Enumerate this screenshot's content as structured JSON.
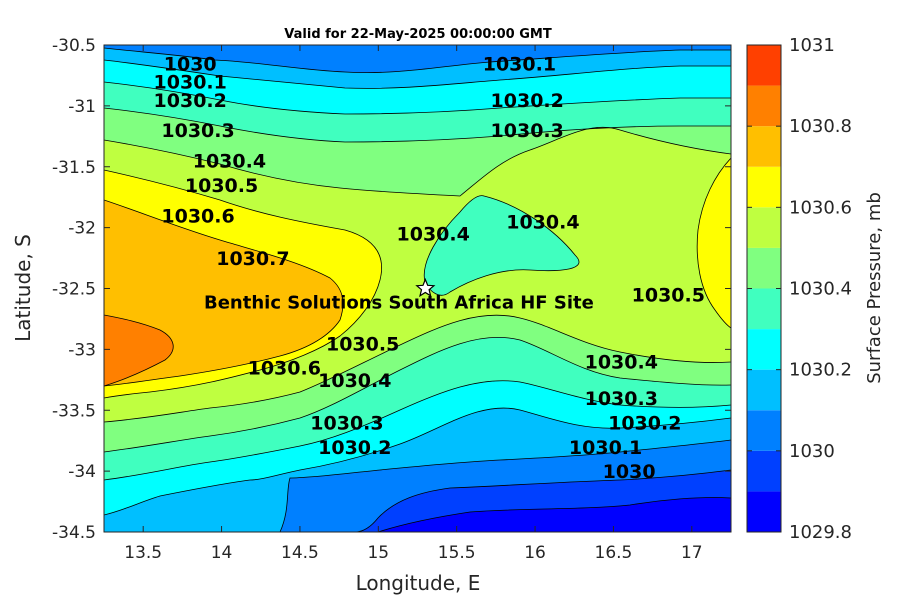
{
  "chart_data": {
    "type": "contour",
    "title": "Valid for 22-May-2025 00:00:00 GMT",
    "xlabel": "Longitude, E",
    "ylabel": "Latitude, S",
    "colorbar_label": "Surface Pressure, mb",
    "xlim": [
      13.25,
      17.25
    ],
    "ylim": [
      -34.5,
      -30.5
    ],
    "x_ticks": [
      13.5,
      14,
      14.5,
      15,
      15.5,
      16,
      16.5,
      17
    ],
    "x_tick_labels": [
      "13.5",
      "14",
      "14.5",
      "15",
      "15.5",
      "16",
      "16.5",
      "17"
    ],
    "y_ticks": [
      -30.5,
      -31,
      -31.5,
      -32,
      -32.5,
      -33,
      -33.5,
      -34,
      -34.5
    ],
    "y_tick_labels": [
      "-30.5",
      "-31",
      "-31.5",
      "-32",
      "-32.5",
      "-33",
      "-33.5",
      "-34",
      "-34.5"
    ],
    "colorbar_range": [
      1029.8,
      1031
    ],
    "colorbar_ticks": [
      1029.8,
      1030,
      1030.2,
      1030.4,
      1030.6,
      1030.8,
      1031
    ],
    "colorbar_tick_labels": [
      "1029.8",
      "1030",
      "1030.2",
      "1030.4",
      "1030.6",
      "1030.8",
      "1031"
    ],
    "contour_levels": [
      1029.8,
      1029.9,
      1030.0,
      1030.1,
      1030.2,
      1030.3,
      1030.4,
      1030.5,
      1030.6,
      1030.7,
      1030.8,
      1030.9,
      1031.0
    ],
    "level_colors": [
      "#0000ff",
      "#0040ff",
      "#0080ff",
      "#00bfff",
      "#00ffff",
      "#40ffbf",
      "#80ff80",
      "#bfff40",
      "#ffff00",
      "#ffbf00",
      "#ff8000",
      "#ff4000"
    ],
    "contour_labels": [
      {
        "text": "1030",
        "lon": 13.8,
        "lat": -30.65
      },
      {
        "text": "1030.1",
        "lon": 13.8,
        "lat": -30.8
      },
      {
        "text": "1030.2",
        "lon": 13.8,
        "lat": -30.95
      },
      {
        "text": "1030.3",
        "lon": 13.85,
        "lat": -31.2
      },
      {
        "text": "1030.4",
        "lon": 14.05,
        "lat": -31.45
      },
      {
        "text": "1030.5",
        "lon": 14.0,
        "lat": -31.65
      },
      {
        "text": "1030.6",
        "lon": 13.85,
        "lat": -31.9
      },
      {
        "text": "1030.7",
        "lon": 14.2,
        "lat": -32.25
      },
      {
        "text": "1030.1",
        "lon": 15.9,
        "lat": -30.65
      },
      {
        "text": "1030.2",
        "lon": 15.95,
        "lat": -30.95
      },
      {
        "text": "1030.3",
        "lon": 15.95,
        "lat": -31.2
      },
      {
        "text": "1030.4",
        "lon": 15.35,
        "lat": -32.05
      },
      {
        "text": "1030.4",
        "lon": 16.05,
        "lat": -31.95
      },
      {
        "text": "1030.5",
        "lon": 16.85,
        "lat": -32.55
      },
      {
        "text": "1030.5",
        "lon": 14.9,
        "lat": -32.95
      },
      {
        "text": "1030.6",
        "lon": 14.4,
        "lat": -33.15
      },
      {
        "text": "1030.4",
        "lon": 14.85,
        "lat": -33.25
      },
      {
        "text": "1030.4",
        "lon": 16.55,
        "lat": -33.1
      },
      {
        "text": "1030.3",
        "lon": 14.8,
        "lat": -33.6
      },
      {
        "text": "1030.3",
        "lon": 16.55,
        "lat": -33.4
      },
      {
        "text": "1030.2",
        "lon": 14.85,
        "lat": -33.8
      },
      {
        "text": "1030.2",
        "lon": 16.7,
        "lat": -33.6
      },
      {
        "text": "1030.1",
        "lon": 16.45,
        "lat": -33.8
      },
      {
        "text": "1030",
        "lon": 16.6,
        "lat": -34.0
      }
    ],
    "site": {
      "name": "Benthic Solutions South Africa HF Site",
      "lon": 15.3,
      "lat": -32.5,
      "marker": "star"
    }
  }
}
